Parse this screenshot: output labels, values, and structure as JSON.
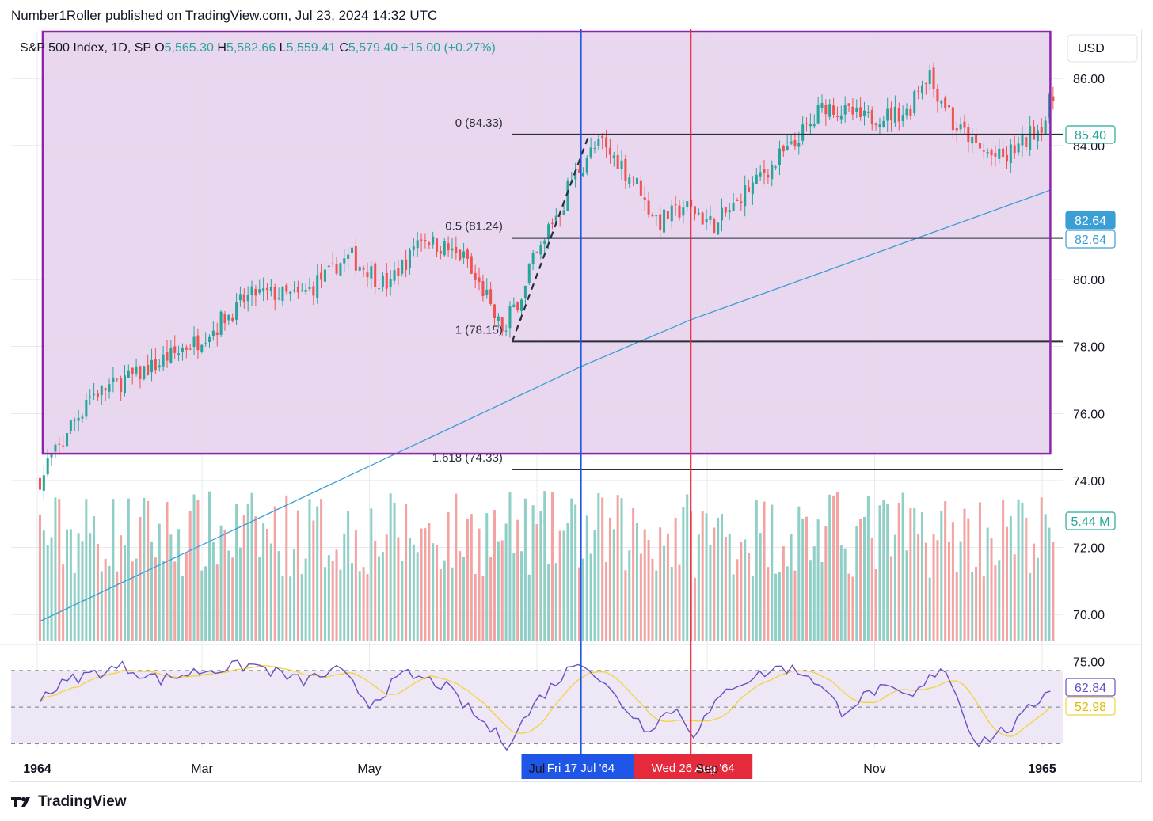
{
  "header": {
    "publisher_line": "Number1Roller published on TradingView.com, Jul 23, 2024 14:32 UTC"
  },
  "legend": {
    "symbol": "S&P 500 Index, 1D, SP",
    "o_label": "O",
    "o_value": "5,565.30",
    "h_label": "H",
    "h_value": "5,582.66",
    "l_label": "L",
    "l_value": "5,559.41",
    "c_label": "C",
    "c_value": "5,579.40",
    "change": "+15.00 (+0.27%)"
  },
  "currency_button": "USD",
  "footer": {
    "brand": "TradingView"
  },
  "colors": {
    "up": "#26a69a",
    "down": "#ef5350",
    "volume_up": "#8fcfc6",
    "volume_down": "#f3a3a1",
    "highlight_fill": "#e9d6ef",
    "highlight_border": "#8e24aa",
    "ma_line": "#3a9fd5",
    "blue_marker": "#1f56e8",
    "red_marker": "#e52a3b",
    "rsi_line": "#6a4fc1",
    "rsi_ma": "#f2d43a",
    "rsi_band": "#ede7f6",
    "fib_line": "#2a2e39"
  },
  "chart_data": {
    "type": "candlestick",
    "symbol": "S&P 500 Index, 1D, SP",
    "x_range": [
      "1964-01-01",
      "1965-01-05"
    ],
    "x_ticks": [
      "1964",
      "Mar",
      "May",
      "Jul",
      "Sep",
      "Nov",
      "1965"
    ],
    "x_tick_dates": [
      "1964-01-01",
      "1964-03-01",
      "1964-05-01",
      "1964-07-01",
      "1964-09-01",
      "1964-11-01",
      "1965-01-01"
    ],
    "x_tick_labels_bold": [
      true,
      false,
      false,
      false,
      false,
      false,
      true
    ],
    "y_ticks": [
      "86.00",
      "84.00",
      "80.00",
      "78.00",
      "76.00",
      "74.00",
      "72.00",
      "70.00"
    ],
    "y_tick_values": [
      86,
      84,
      80,
      78,
      76,
      74,
      72,
      70
    ],
    "price_range": [
      69.2,
      87.4
    ],
    "price_path": [
      [
        "1964-01-02",
        74.0
      ],
      [
        "1964-01-20",
        76.5
      ],
      [
        "1964-02-10",
        77.3
      ],
      [
        "1964-03-02",
        78.3
      ],
      [
        "1964-03-20",
        79.6
      ],
      [
        "1964-04-06",
        79.5
      ],
      [
        "1964-04-24",
        80.7
      ],
      [
        "1964-05-08",
        79.8
      ],
      [
        "1964-05-20",
        81.3
      ],
      [
        "1964-06-05",
        80.6
      ],
      [
        "1964-06-19",
        78.4
      ],
      [
        "1964-07-02",
        80.9
      ],
      [
        "1964-07-16",
        83.3
      ],
      [
        "1964-07-24",
        84.1
      ],
      [
        "1964-08-05",
        83.0
      ],
      [
        "1964-08-14",
        81.7
      ],
      [
        "1964-08-24",
        82.2
      ],
      [
        "1964-09-04",
        81.6
      ],
      [
        "1964-09-18",
        82.9
      ],
      [
        "1964-10-02",
        84.0
      ],
      [
        "1964-10-14",
        85.2
      ],
      [
        "1964-10-28",
        84.8
      ],
      [
        "1964-11-12",
        85.0
      ],
      [
        "1964-11-20",
        86.2
      ],
      [
        "1964-11-30",
        84.6
      ],
      [
        "1964-12-10",
        83.8
      ],
      [
        "1964-12-18",
        83.6
      ],
      [
        "1964-12-30",
        84.5
      ],
      [
        "1965-01-05",
        85.4
      ]
    ],
    "last_price": "85.40",
    "moving_average": {
      "label": "82.64",
      "path": [
        [
          "1964-01-02",
          69.8
        ],
        [
          "1964-07-17",
          77.4
        ],
        [
          "1964-08-26",
          78.8
        ],
        [
          "1965-01-05",
          82.7
        ]
      ]
    },
    "ma_label_2": "82.64",
    "volume": {
      "last_label": "5.44 M"
    },
    "fibonacci": [
      {
        "ratio": "0",
        "label": "0 (84.33)",
        "value": 84.33
      },
      {
        "ratio": "0.5",
        "label": "0.5 (81.24)",
        "value": 81.24
      },
      {
        "ratio": "1",
        "label": "1 (78.15)",
        "value": 78.15
      },
      {
        "ratio": "1.618",
        "label": "1.618 (74.33)",
        "value": 74.33
      }
    ],
    "fib_anchor": {
      "start": [
        "1964-06-22",
        78.15
      ],
      "end": [
        "1964-07-20",
        84.33
      ]
    },
    "highlight_rectangle": {
      "from": "1964-01-03",
      "to": "1965-01-04",
      "top": 87.4,
      "bottom": 74.8
    },
    "vertical_markers": [
      {
        "label": "Fri 17 Jul '64",
        "date": "1964-07-17",
        "color": "#1f56e8"
      },
      {
        "label": "Wed 26 Aug '64",
        "date": "1964-08-26",
        "color": "#e52a3b"
      }
    ],
    "rsi": {
      "levels": [
        70,
        50,
        30
      ],
      "y_range": [
        28,
        79
      ],
      "tick": "75.00",
      "last_value": "62.84",
      "ma_value": "52.98",
      "path": [
        [
          "1964-01-02",
          56
        ],
        [
          "1964-01-15",
          66
        ],
        [
          "1964-02-01",
          72
        ],
        [
          "1964-02-15",
          65
        ],
        [
          "1964-03-01",
          70
        ],
        [
          "1964-03-20",
          73
        ],
        [
          "1964-04-06",
          64
        ],
        [
          "1964-04-20",
          70
        ],
        [
          "1964-05-01",
          52
        ],
        [
          "1964-05-14",
          68
        ],
        [
          "1964-05-28",
          62
        ],
        [
          "1964-06-08",
          46
        ],
        [
          "1964-06-20",
          30
        ],
        [
          "1964-07-02",
          55
        ],
        [
          "1964-07-17",
          77
        ],
        [
          "1964-07-28",
          58
        ],
        [
          "1964-08-10",
          38
        ],
        [
          "1964-08-20",
          50
        ],
        [
          "1964-08-27",
          36
        ],
        [
          "1964-09-10",
          62
        ],
        [
          "1964-09-28",
          72
        ],
        [
          "1964-10-08",
          68
        ],
        [
          "1964-10-20",
          48
        ],
        [
          "1964-11-02",
          60
        ],
        [
          "1964-11-15",
          55
        ],
        [
          "1964-11-26",
          74
        ],
        [
          "1964-12-08",
          30
        ],
        [
          "1964-12-22",
          40
        ],
        [
          "1965-01-05",
          62.8
        ]
      ]
    }
  }
}
